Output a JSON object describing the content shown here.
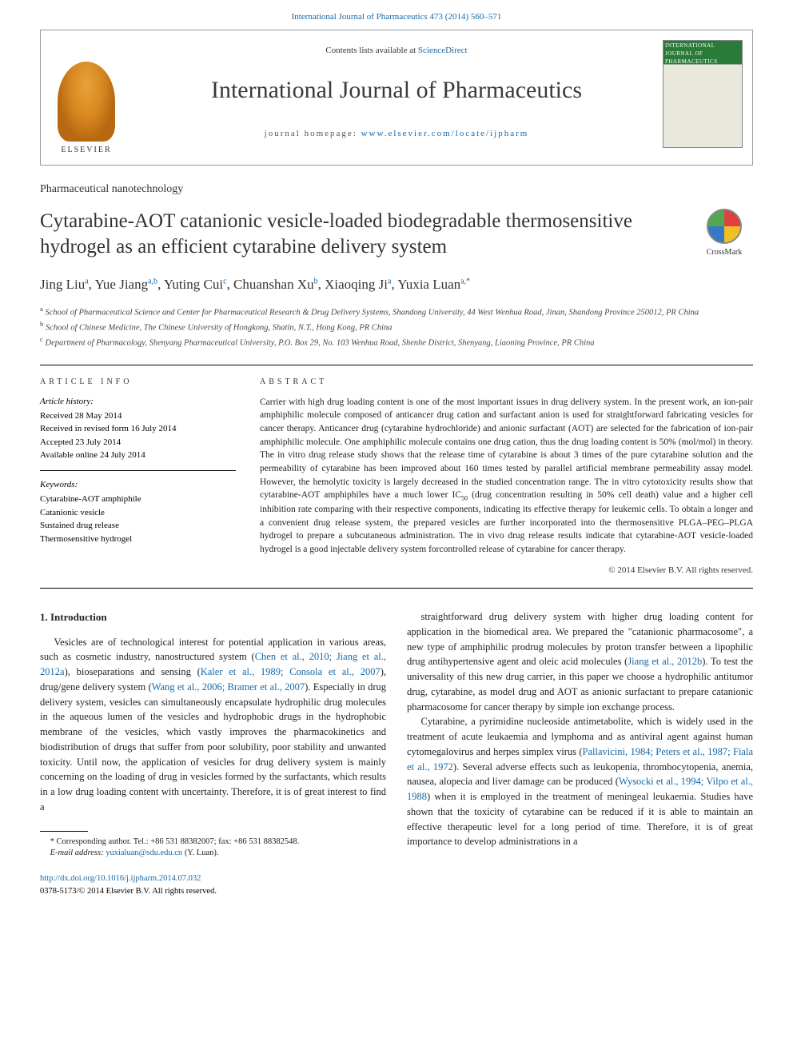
{
  "citation_header": "International Journal of Pharmaceutics 473 (2014) 560–571",
  "header": {
    "contents_prefix": "Contents lists available at ",
    "contents_link": "ScienceDirect",
    "journal_name": "International Journal of Pharmaceutics",
    "homepage_prefix": "journal homepage: ",
    "homepage_link": "www.elsevier.com/locate/ijpharm",
    "elsevier_label": "ELSEVIER",
    "cover_top_label": "INTERNATIONAL JOURNAL OF",
    "cover_title": "PHARMACEUTICS"
  },
  "section_label": "Pharmaceutical nanotechnology",
  "title": "Cytarabine-AOT catanionic vesicle-loaded biodegradable thermosensitive hydrogel as an efficient cytarabine delivery system",
  "crossmark_label": "CrossMark",
  "authors_html": "Jing Liu<sup>a</sup>, Yue Jiang<sup>a,b</sup>, Yuting Cui<sup>c</sup>, Chuanshan Xu<sup>b</sup>, Xiaoqing Ji<sup>a</sup>, Yuxia Luan<sup>a,*</sup>",
  "affiliations": [
    "<sup>a</sup> School of Pharmaceutical Science and Center for Pharmaceutical Research & Drug Delivery Systems, Shandong University, 44 West Wenhua Road, Jinan, Shandong Province 250012, PR China",
    "<sup>b</sup> School of Chinese Medicine, The Chinese University of Hongkong, Shatin, N.T., Hong Kong, PR China",
    "<sup>c</sup> Department of Pharmacology, Shenyang Pharmaceutical University, P.O. Box 29, No. 103 Wenhua Road, Shenhe District, Shenyang, Liaoning Province, PR China"
  ],
  "article_info": {
    "heading": "ARTICLE INFO",
    "history_label": "Article history:",
    "history": [
      "Received 28 May 2014",
      "Received in revised form 16 July 2014",
      "Accepted 23 July 2014",
      "Available online 24 July 2014"
    ],
    "keywords_label": "Keywords:",
    "keywords": [
      "Cytarabine-AOT amphiphile",
      "Catanionic vesicle",
      "Sustained drug release",
      "Thermosensitive hydrogel"
    ]
  },
  "abstract": {
    "heading": "ABSTRACT",
    "text": "Carrier with high drug loading content is one of the most important issues in drug delivery system. In the present work, an ion-pair amphiphilic molecule composed of anticancer drug cation and surfactant anion is used for straightforward fabricating vesicles for cancer therapy. Anticancer drug (cytarabine hydrochloride) and anionic surfactant (AOT) are selected for the fabrication of ion-pair amphiphilic molecule. One amphiphilic molecule contains one drug cation, thus the drug loading content is 50% (mol/mol) in theory. The in vitro drug release study shows that the release time of cytarabine is about 3 times of the pure cytarabine solution and the permeability of cytarabine has been improved about 160 times tested by parallel artificial membrane permeability assay model. However, the hemolytic toxicity is largely decreased in the studied concentration range. The in vitro cytotoxicity results show that cytarabine-AOT amphiphiles have a much lower IC<sub>50</sub> (drug concentration resulting in 50% cell death) value and a higher cell inhibition rate comparing with their respective components, indicating its effective therapy for leukemic cells. To obtain a longer and a convenient drug release system, the prepared vesicles are further incorporated into the thermosensitive PLGA–PEG–PLGA hydrogel to prepare a subcutaneous administration. The in vivo drug release results indicate that cytarabine-AOT vesicle-loaded hydrogel is a good injectable delivery system forcontrolled release of cytarabine for cancer therapy.",
    "copyright": "© 2014 Elsevier B.V. All rights reserved."
  },
  "body": {
    "heading": "1. Introduction",
    "col1_p1": "Vesicles are of technological interest for potential application in various areas, such as cosmetic industry, nanostructured system (<a>Chen et al., 2010; Jiang et al., 2012a</a>), bioseparations and sensing (<a>Kaler et al., 1989; Consola et al., 2007</a>), drug/gene delivery system (<a>Wang et al., 2006; Bramer et al., 2007</a>). Especially in drug delivery system, vesicles can simultaneously encapsulate hydrophilic drug molecules in the aqueous lumen of the vesicles and hydrophobic drugs in the hydrophobic membrane of the vesicles, which vastly improves the pharmacokinetics and biodistribution of drugs that suffer from poor solubility, poor stability and unwanted toxicity. Until now, the application of vesicles for drug delivery system is mainly concerning on the loading of drug in vesicles formed by the surfactants, which results in a low drug loading content with uncertainty. Therefore, it is of great interest to find a",
    "col2_p1": "straightforward drug delivery system with higher drug loading content for application in the biomedical area. We prepared the \"catanionic pharmacosome\", a new type of amphiphilic prodrug molecules by proton transfer between a lipophilic drug antihypertensive agent and oleic acid molecules (<a>Jiang et al., 2012b</a>). To test the universality of this new drug carrier, in this paper we choose a hydrophilic antitumor drug, cytarabine, as model drug and AOT as anionic surfactant to prepare catanionic pharmacosome for cancer therapy by simple ion exchange process.",
    "col2_p2": "Cytarabine, a pyrimidine nucleoside antimetabolite, which is widely used in the treatment of acute leukaemia and lymphoma and as antiviral agent against human cytomegalovirus and herpes simplex virus (<a>Pallavicini, 1984; Peters et al., 1987; Fiala et al., 1972</a>). Several adverse effects such as leukopenia, thrombocytopenia, anemia, nausea, alopecia and liver damage can be produced (<a>Wysocki et al., 1994; Vilpo et al., 1988</a>) when it is employed in the treatment of meningeal leukaemia. Studies have shown that the toxicity of cytarabine can be reduced if it is able to maintain an effective therapeutic level for a long period of time. Therefore, it is of great importance to develop administrations in a"
  },
  "footnote": {
    "corr": "* Corresponding author. Tel.: +86 531 88382007; fax: +86 531 88382548.",
    "email_label": "E-mail address: ",
    "email": "yuxialuan@sdu.edu.cn",
    "email_suffix": " (Y. Luan)."
  },
  "footer": {
    "doi": "http://dx.doi.org/10.1016/j.ijpharm.2014.07.032",
    "issn_line": "0378-5173/© 2014 Elsevier B.V. All rights reserved."
  },
  "colors": {
    "link": "#1768a6",
    "text": "#222222",
    "rule": "#000000"
  }
}
